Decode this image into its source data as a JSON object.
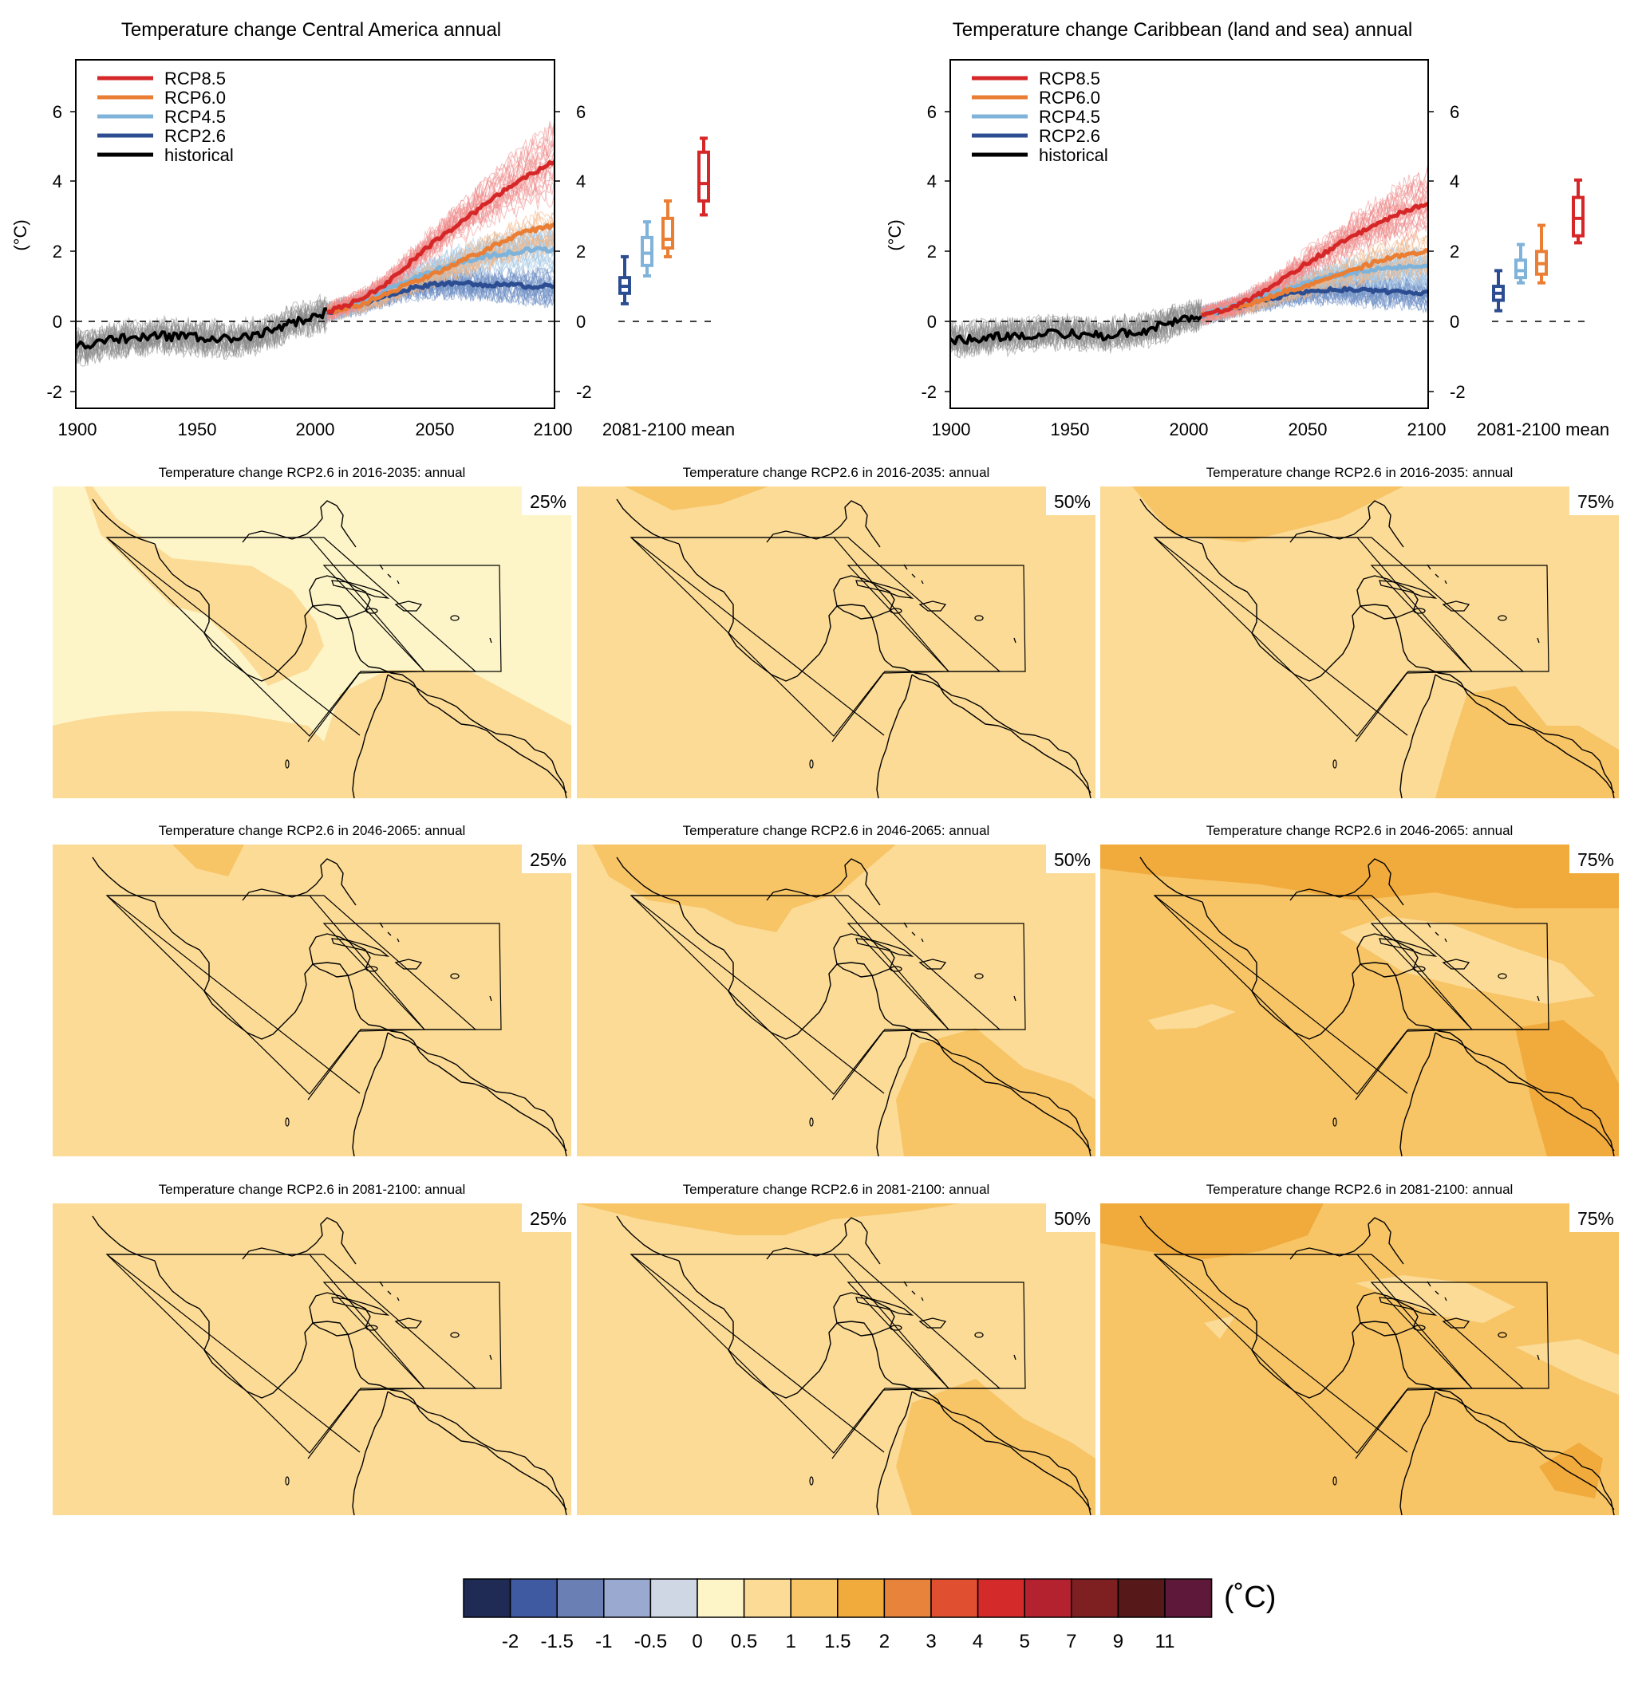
{
  "ts_panels": [
    {
      "title": "Temperature change Central America annual",
      "ylabel": "(°C)",
      "ylim": [
        -2.5,
        7.5
      ],
      "yticks": [
        "-2",
        "0",
        "2",
        "4",
        "6"
      ],
      "xlim": [
        1900,
        2100
      ],
      "xticks": [
        "1900",
        "1950",
        "2000",
        "2050",
        "2100"
      ],
      "box_label": "2081-2100 mean",
      "legend": [
        "RCP8.5",
        "RCP6.0",
        "RCP4.5",
        "RCP2.6",
        "historical"
      ],
      "historical_mean": [
        [
          1900,
          -0.7
        ],
        [
          1905,
          -0.75
        ],
        [
          1910,
          -0.6
        ],
        [
          1915,
          -0.55
        ],
        [
          1920,
          -0.5
        ],
        [
          1925,
          -0.5
        ],
        [
          1930,
          -0.45
        ],
        [
          1935,
          -0.4
        ],
        [
          1940,
          -0.45
        ],
        [
          1945,
          -0.45
        ],
        [
          1950,
          -0.45
        ],
        [
          1955,
          -0.5
        ],
        [
          1960,
          -0.5
        ],
        [
          1965,
          -0.55
        ],
        [
          1970,
          -0.45
        ],
        [
          1975,
          -0.45
        ],
        [
          1980,
          -0.3
        ],
        [
          1985,
          -0.2
        ],
        [
          1990,
          -0.05
        ],
        [
          1995,
          0.05
        ],
        [
          2000,
          0.15
        ],
        [
          2005,
          0.25
        ]
      ],
      "scenario_means": {
        "RCP8.5": [
          [
            2005,
            0.25
          ],
          [
            2020,
            0.65
          ],
          [
            2030,
            1.1
          ],
          [
            2040,
            1.7
          ],
          [
            2050,
            2.3
          ],
          [
            2060,
            2.8
          ],
          [
            2070,
            3.3
          ],
          [
            2080,
            3.8
          ],
          [
            2090,
            4.2
          ],
          [
            2100,
            4.6
          ]
        ],
        "RCP6.0": [
          [
            2005,
            0.25
          ],
          [
            2020,
            0.5
          ],
          [
            2030,
            0.8
          ],
          [
            2040,
            1.1
          ],
          [
            2050,
            1.35
          ],
          [
            2060,
            1.7
          ],
          [
            2070,
            2.0
          ],
          [
            2080,
            2.35
          ],
          [
            2090,
            2.6
          ],
          [
            2100,
            2.75
          ]
        ],
        "RCP4.5": [
          [
            2005,
            0.25
          ],
          [
            2020,
            0.55
          ],
          [
            2030,
            0.9
          ],
          [
            2040,
            1.2
          ],
          [
            2050,
            1.45
          ],
          [
            2060,
            1.7
          ],
          [
            2070,
            1.85
          ],
          [
            2080,
            1.95
          ],
          [
            2090,
            2.05
          ],
          [
            2100,
            2.05
          ]
        ],
        "RCP2.6": [
          [
            2005,
            0.25
          ],
          [
            2020,
            0.5
          ],
          [
            2030,
            0.75
          ],
          [
            2040,
            0.95
          ],
          [
            2050,
            1.05
          ],
          [
            2060,
            1.1
          ],
          [
            2070,
            1.05
          ],
          [
            2080,
            1.05
          ],
          [
            2090,
            1.0
          ],
          [
            2100,
            1.0
          ]
        ]
      },
      "boxes": {
        "RCP2.6": {
          "min": 0.5,
          "q1": 0.8,
          "median": 1.0,
          "q3": 1.25,
          "max": 1.85
        },
        "RCP4.5": {
          "min": 1.3,
          "q1": 1.6,
          "median": 1.95,
          "q3": 2.4,
          "max": 2.85
        },
        "RCP6.0": {
          "min": 1.85,
          "q1": 2.1,
          "median": 2.35,
          "q3": 2.95,
          "max": 3.45
        },
        "RCP8.5": {
          "min": 3.05,
          "q1": 3.45,
          "median": 3.95,
          "q3": 4.85,
          "max": 5.25
        }
      }
    },
    {
      "title": "Temperature change Caribbean (land and sea) annual",
      "ylabel": "(°C)",
      "ylim": [
        -2.5,
        7.5
      ],
      "yticks": [
        "-2",
        "0",
        "2",
        "4",
        "6"
      ],
      "xlim": [
        1900,
        2100
      ],
      "xticks": [
        "1900",
        "1950",
        "2000",
        "2050",
        "2100"
      ],
      "box_label": "2081-2100 mean",
      "legend": [
        "RCP8.5",
        "RCP6.0",
        "RCP4.5",
        "RCP2.6",
        "historical"
      ],
      "historical_mean": [
        [
          1900,
          -0.55
        ],
        [
          1905,
          -0.55
        ],
        [
          1910,
          -0.5
        ],
        [
          1915,
          -0.45
        ],
        [
          1920,
          -0.45
        ],
        [
          1925,
          -0.45
        ],
        [
          1930,
          -0.4
        ],
        [
          1935,
          -0.4
        ],
        [
          1940,
          -0.35
        ],
        [
          1945,
          -0.35
        ],
        [
          1950,
          -0.35
        ],
        [
          1955,
          -0.4
        ],
        [
          1960,
          -0.4
        ],
        [
          1965,
          -0.45
        ],
        [
          1970,
          -0.35
        ],
        [
          1975,
          -0.35
        ],
        [
          1980,
          -0.3
        ],
        [
          1985,
          -0.2
        ],
        [
          1990,
          -0.1
        ],
        [
          1995,
          0.0
        ],
        [
          2000,
          0.1
        ],
        [
          2005,
          0.15
        ]
      ],
      "scenario_means": {
        "RCP8.5": [
          [
            2005,
            0.15
          ],
          [
            2020,
            0.45
          ],
          [
            2030,
            0.8
          ],
          [
            2040,
            1.25
          ],
          [
            2050,
            1.7
          ],
          [
            2060,
            2.1
          ],
          [
            2070,
            2.5
          ],
          [
            2080,
            2.85
          ],
          [
            2090,
            3.15
          ],
          [
            2100,
            3.4
          ]
        ],
        "RCP6.0": [
          [
            2005,
            0.15
          ],
          [
            2020,
            0.4
          ],
          [
            2030,
            0.6
          ],
          [
            2040,
            0.85
          ],
          [
            2050,
            1.05
          ],
          [
            2060,
            1.3
          ],
          [
            2070,
            1.5
          ],
          [
            2080,
            1.75
          ],
          [
            2090,
            1.9
          ],
          [
            2100,
            2.0
          ]
        ],
        "RCP4.5": [
          [
            2005,
            0.15
          ],
          [
            2020,
            0.45
          ],
          [
            2030,
            0.7
          ],
          [
            2040,
            0.9
          ],
          [
            2050,
            1.1
          ],
          [
            2060,
            1.3
          ],
          [
            2070,
            1.4
          ],
          [
            2080,
            1.5
          ],
          [
            2090,
            1.55
          ],
          [
            2100,
            1.55
          ]
        ],
        "RCP2.6": [
          [
            2005,
            0.15
          ],
          [
            2020,
            0.4
          ],
          [
            2030,
            0.6
          ],
          [
            2040,
            0.75
          ],
          [
            2050,
            0.85
          ],
          [
            2060,
            0.9
          ],
          [
            2070,
            0.9
          ],
          [
            2080,
            0.85
          ],
          [
            2090,
            0.85
          ],
          [
            2100,
            0.8
          ]
        ]
      },
      "boxes": {
        "RCP2.6": {
          "min": 0.3,
          "q1": 0.6,
          "median": 0.8,
          "q3": 1.0,
          "max": 1.45
        },
        "RCP4.5": {
          "min": 1.1,
          "q1": 1.25,
          "median": 1.45,
          "q3": 1.75,
          "max": 2.2
        },
        "RCP6.0": {
          "min": 1.1,
          "q1": 1.35,
          "median": 1.65,
          "q3": 2.0,
          "max": 2.75
        },
        "RCP8.5": {
          "min": 2.25,
          "q1": 2.45,
          "median": 2.95,
          "q3": 3.55,
          "max": 4.05
        }
      }
    }
  ],
  "scenario_colors": {
    "RCP8.5": "#d62728",
    "RCP6.0": "#e97e34",
    "RCP4.5": "#7fb3d9",
    "RCP2.6": "#2c4d91",
    "historical": "#000000"
  },
  "map_panels": [
    {
      "title": "Temperature change RCP2.6 in 2016-2035: annual",
      "percentile": "25%"
    },
    {
      "title": "Temperature change RCP2.6 in 2016-2035: annual",
      "percentile": "50%"
    },
    {
      "title": "Temperature change RCP2.6 in 2016-2035: annual",
      "percentile": "75%"
    },
    {
      "title": "Temperature change RCP2.6 in 2046-2065: annual",
      "percentile": "25%"
    },
    {
      "title": "Temperature change RCP2.6 in 2046-2065: annual",
      "percentile": "50%"
    },
    {
      "title": "Temperature change RCP2.6 in 2046-2065: annual",
      "percentile": "75%"
    },
    {
      "title": "Temperature change RCP2.6 in 2081-2100: annual",
      "percentile": "25%"
    },
    {
      "title": "Temperature change RCP2.6 in 2081-2100: annual",
      "percentile": "50%"
    },
    {
      "title": "Temperature change RCP2.6 in 2081-2100: annual",
      "percentile": "75%"
    }
  ],
  "colorbar": {
    "colors": [
      "#1f2a55",
      "#3f5aa1",
      "#6a7fb4",
      "#9aa9cf",
      "#cfd6e4",
      "#fdf5c8",
      "#fbdb96",
      "#f7c466",
      "#f1aa3c",
      "#e8833c",
      "#e05030",
      "#d42a2a",
      "#b3222e",
      "#7e1f22",
      "#561819",
      "#5e1839"
    ],
    "labels": [
      "-2",
      "-1.5",
      "-1",
      "-0.5",
      "0",
      "0.5",
      "1",
      "1.5",
      "2",
      "3",
      "4",
      "5",
      "7",
      "9",
      "11"
    ],
    "unit": "(˚C)"
  }
}
